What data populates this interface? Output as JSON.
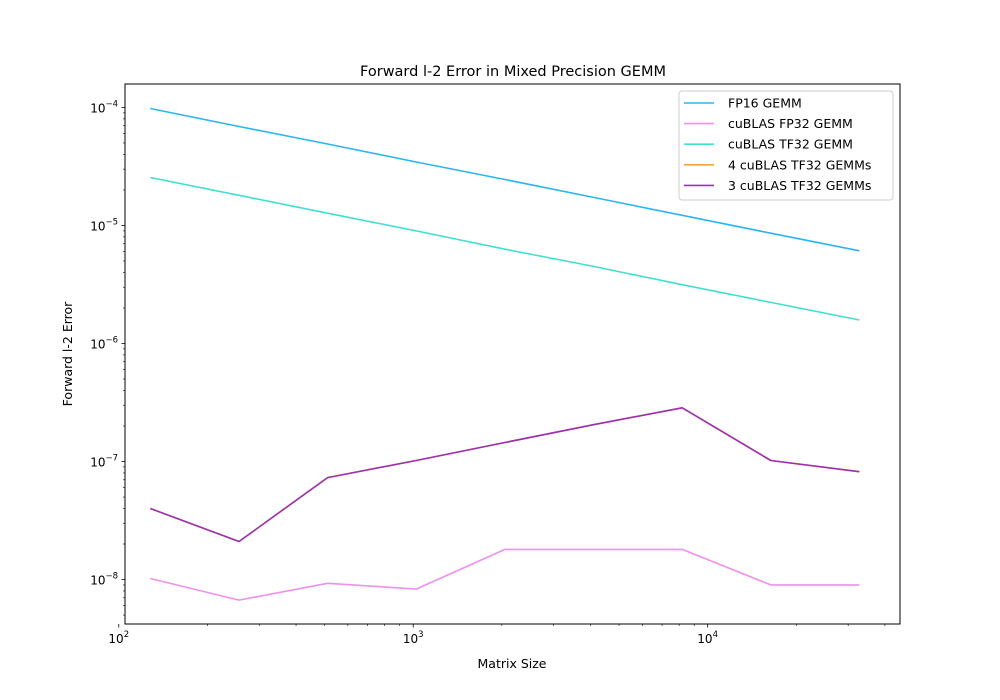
{
  "chart_data": {
    "type": "line",
    "title": "Forward l-2 Error in Mixed Precision GEMM",
    "xlabel": "Matrix Size",
    "ylabel": "Forward l-2 Error",
    "xscale": "log",
    "yscale": "log",
    "xlim": [
      105,
      45000
    ],
    "ylim": [
      4.2e-09,
      0.000158
    ],
    "x_ticks": [
      {
        "value": 100,
        "label": "10",
        "exp": "2"
      },
      {
        "value": 1000,
        "label": "10",
        "exp": "3"
      },
      {
        "value": 10000,
        "label": "10",
        "exp": "4"
      }
    ],
    "y_ticks": [
      {
        "value": 1e-08,
        "label": "10",
        "exp": "−8"
      },
      {
        "value": 1e-07,
        "label": "10",
        "exp": "−7"
      },
      {
        "value": 1e-06,
        "label": "10",
        "exp": "−6"
      },
      {
        "value": 1e-05,
        "label": "10",
        "exp": "−5"
      },
      {
        "value": 0.0001,
        "label": "10",
        "exp": "−4"
      }
    ],
    "grid": false,
    "legend_position": "top-right",
    "x": [
      128,
      256,
      512,
      1024,
      2048,
      4096,
      8192,
      16384,
      32768
    ],
    "series": [
      {
        "name": "FP16 GEMM",
        "color": "#2BB5F2",
        "values": [
          9.8e-05,
          6.9e-05,
          4.9e-05,
          3.45e-05,
          2.45e-05,
          1.73e-05,
          1.22e-05,
          8.6e-06,
          6.1e-06
        ]
      },
      {
        "name": "cuBLAS FP32 GEMM",
        "color": "#EE90EE",
        "values": [
          1.02e-08,
          6.7e-09,
          9.3e-09,
          8.3e-09,
          1.8e-08,
          1.8e-08,
          1.8e-08,
          9e-09,
          9e-09
        ]
      },
      {
        "name": "cuBLAS TF32 GEMM",
        "color": "#40E0D0",
        "values": [
          2.55e-05,
          1.8e-05,
          1.27e-05,
          9e-06,
          6.3e-06,
          4.5e-06,
          3.15e-06,
          2.23e-06,
          1.58e-06
        ]
      },
      {
        "name": "4 cuBLAS TF32 GEMMs",
        "color": "#FFA040",
        "values": [
          4e-08,
          2.1e-08,
          7.3e-08,
          1.02e-07,
          1.45e-07,
          2.05e-07,
          2.85e-07,
          1.02e-07,
          8.2e-08
        ]
      },
      {
        "name": "3 cuBLAS TF32 GEMMs",
        "color": "#9B30B4",
        "values": [
          4e-08,
          2.1e-08,
          7.3e-08,
          1.02e-07,
          1.45e-07,
          2.05e-07,
          2.85e-07,
          1.02e-07,
          8.2e-08
        ]
      }
    ]
  }
}
